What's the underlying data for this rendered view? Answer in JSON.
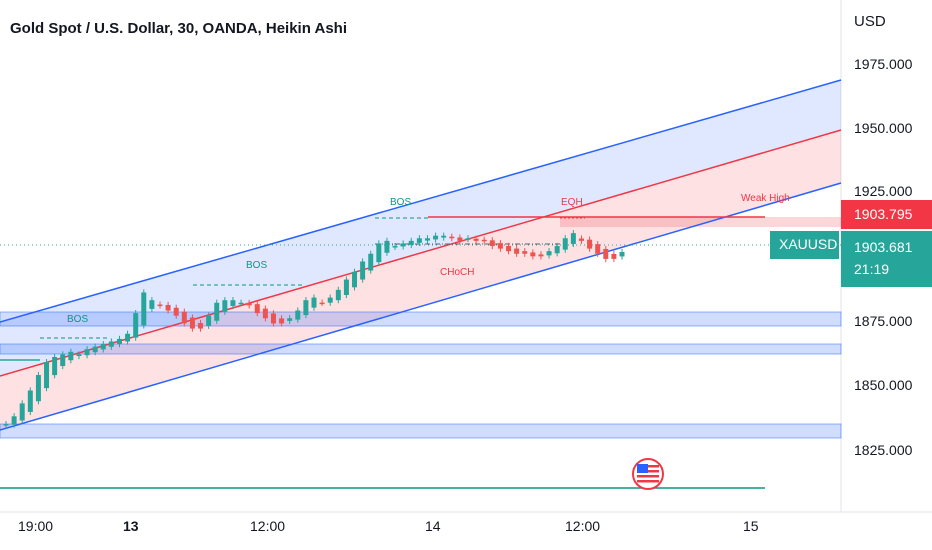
{
  "header": {
    "title": "Gold Spot / U.S. Dollar, 30, OANDA, Heikin Ashi",
    "currency": "USD"
  },
  "chart_data": {
    "type": "candlestick",
    "symbol": "XAUUSD",
    "y_ticks": [
      "1975.000",
      "1950.000",
      "1925.000",
      "1875.000",
      "1850.000",
      "1825.000"
    ],
    "x_ticks": [
      {
        "label": "19:00",
        "bold": false
      },
      {
        "label": "13",
        "bold": true
      },
      {
        "label": "12:00",
        "bold": false
      },
      {
        "label": "14",
        "bold": false
      },
      {
        "label": "12:00",
        "bold": false
      },
      {
        "label": "15",
        "bold": false
      }
    ],
    "candles": [
      1837,
      1840,
      1845,
      1850,
      1856,
      1861,
      1863,
      1864,
      1865,
      1864,
      1866,
      1867,
      1868,
      1869,
      1870,
      1872,
      1880,
      1888,
      1885,
      1883,
      1881,
      1879,
      1876,
      1874,
      1874,
      1879,
      1884,
      1885,
      1885,
      1884,
      1883,
      1880,
      1878,
      1876,
      1876,
      1878,
      1881,
      1885,
      1886,
      1884,
      1886,
      1889,
      1893,
      1896,
      1900,
      1903,
      1907,
      1908,
      1906,
      1907,
      1908,
      1909,
      1909,
      1910,
      1910,
      1909,
      1908,
      1909,
      1908,
      1908,
      1906,
      1905,
      1904,
      1903,
      1903,
      1902,
      1902,
      1904,
      1906,
      1909,
      1911,
      1908,
      1905,
      1903,
      1901,
      1901,
      1903.681
    ],
    "channels": [
      {
        "name": "upper",
        "color": "#2962ff"
      },
      {
        "name": "middle",
        "color": "#f23645"
      },
      {
        "name": "lower",
        "color": "#2962ff"
      }
    ],
    "levels": {
      "weak_high": 1909.8,
      "demand_zones": [
        [
          1877,
          1873
        ],
        [
          1866,
          1862
        ],
        [
          1833,
          1828
        ]
      ],
      "green_line": 1805
    },
    "annotations": [
      "BOS",
      "BOS",
      "BOS",
      "CHoCH",
      "EQH",
      "Weak High"
    ],
    "badges": {
      "price_high": "1903.795",
      "symbol": "XAUUSD",
      "last_price": "1903.681",
      "countdown": "21:19"
    },
    "colors": {
      "up": "#26a69a",
      "down": "#ef5350",
      "channel_blue": "#2962ff",
      "channel_red": "#f23645",
      "zone": "#2962ff",
      "green_line": "#089981"
    }
  }
}
